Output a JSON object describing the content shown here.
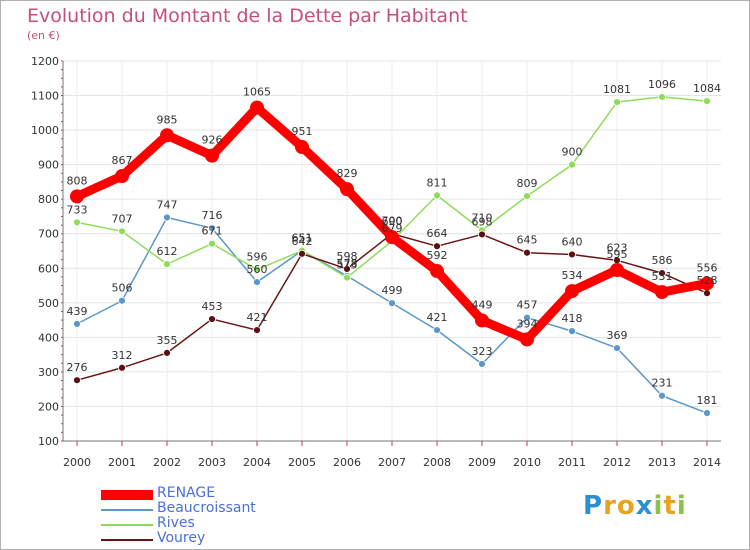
{
  "header": {
    "title": "Evolution du Montant de la Dette par Habitant",
    "subtitle": "(en €)"
  },
  "logo": {
    "text": "Proxiti"
  },
  "chart_data": {
    "type": "line",
    "title": "Evolution du Montant de la Dette par Habitant",
    "subtitle": "(en €)",
    "x": [
      "2000",
      "2001",
      "2002",
      "2003",
      "2004",
      "2005",
      "2006",
      "2007",
      "2008",
      "2009",
      "2010",
      "2011",
      "2012",
      "2013",
      "2014"
    ],
    "y_ticks": [
      100,
      200,
      300,
      400,
      500,
      600,
      700,
      800,
      900,
      1000,
      1100,
      1200
    ],
    "ylim": [
      100,
      1200
    ],
    "grid": true,
    "legend_position": "bottom-left",
    "series": [
      {
        "name": "RENAGE",
        "color": "#ff0000",
        "values": [
          808,
          867,
          985,
          926,
          1065,
          951,
          829,
          690,
          592,
          449,
          394,
          534,
          595,
          531,
          556
        ]
      },
      {
        "name": "Beaucroissant",
        "color": "#5b97c9",
        "values": [
          439,
          506,
          747,
          716,
          560,
          651,
          578,
          499,
          421,
          323,
          457,
          418,
          369,
          231,
          181
        ]
      },
      {
        "name": "Rives",
        "color": "#8fdc5a",
        "values": [
          733,
          707,
          612,
          671,
          596,
          651,
          573,
          679,
          811,
          710,
          809,
          900,
          1081,
          1096,
          1084
        ]
      },
      {
        "name": "Vourey",
        "color": "#6b1414",
        "values": [
          276,
          312,
          355,
          453,
          421,
          642,
          598,
          700,
          664,
          698,
          645,
          640,
          623,
          586,
          528
        ]
      }
    ]
  }
}
